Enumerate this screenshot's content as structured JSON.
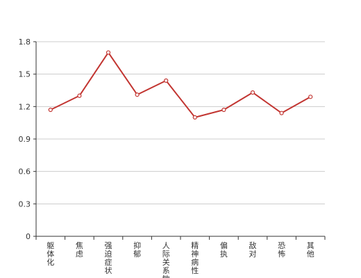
{
  "chart_data": {
    "type": "line",
    "categories": [
      "躯体化",
      "焦虑",
      "强迫症状",
      "抑郁",
      "人际关系敏感",
      "精神病性",
      "偏执",
      "敌对",
      "恐怖",
      "其他"
    ],
    "series": [
      {
        "values": [
          1.17,
          1.3,
          1.7,
          1.31,
          1.44,
          1.1,
          1.17,
          1.33,
          1.14,
          1.29
        ]
      }
    ],
    "ylim": [
      0,
      1.8
    ],
    "yticks": [
      "0",
      "0.3",
      "0.6",
      "0.9",
      "1.2",
      "1.5",
      "1.8"
    ],
    "grid": true,
    "colors": {
      "line": "#c23531",
      "marker_fill": "#ffffff",
      "grid": "#cccccc",
      "axis": "#333333",
      "text": "#333333"
    }
  }
}
